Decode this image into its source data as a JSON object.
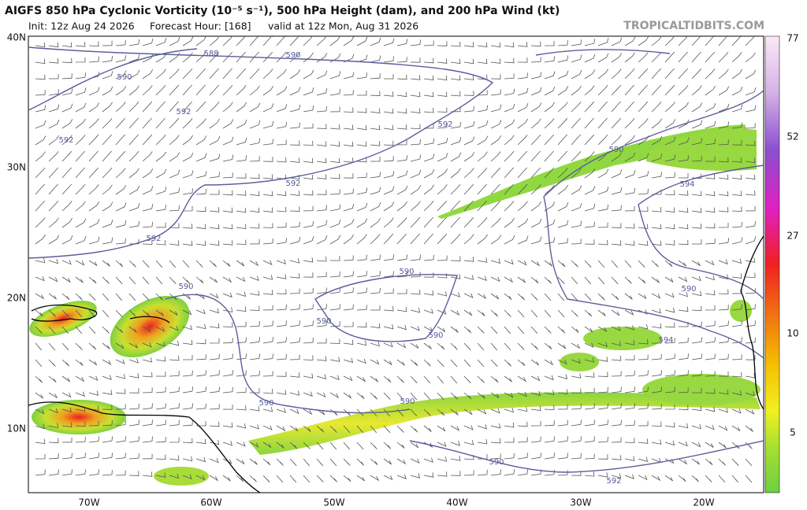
{
  "header": {
    "title": "AIGFS 850 hPa Cyclonic Vorticity (10⁻⁵ s⁻¹), 500 hPa Height (dam), and 200 hPa Wind (kt)",
    "init": "Init: 12z Aug 24 2026",
    "forecast_hour": "Forecast Hour: [168]",
    "valid": "valid at 12z Mon, Aug 31 2026",
    "site": "TROPICALTIDBITS.COM"
  },
  "map": {
    "lat_labels": [
      "40N",
      "30N",
      "20N",
      "10N"
    ],
    "lon_labels": [
      "70W",
      "60W",
      "50W",
      "40W",
      "30W",
      "20W"
    ],
    "contour_labels": [
      "588",
      "590",
      "590",
      "592",
      "592",
      "592",
      "592",
      "592",
      "590",
      "590",
      "590",
      "590",
      "590",
      "590",
      "590",
      "590",
      "592",
      "594",
      "594",
      "590"
    ]
  },
  "colorbar": {
    "labels": [
      "77",
      "52",
      "27",
      "10",
      "5"
    ]
  }
}
